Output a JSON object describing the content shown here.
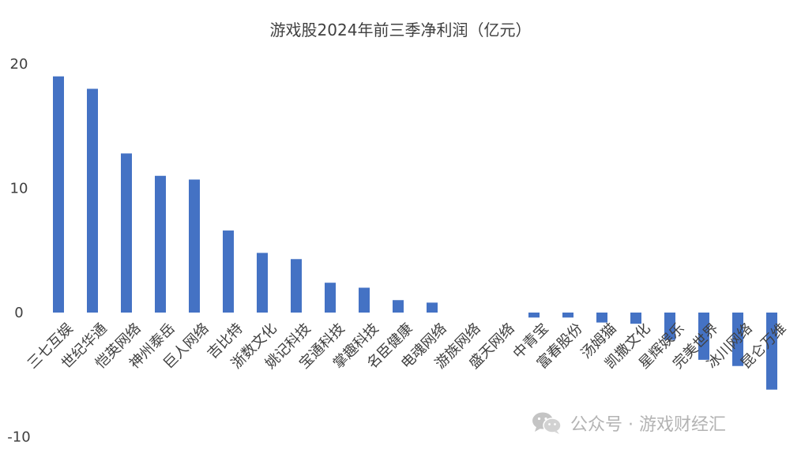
{
  "chart_data": {
    "type": "bar",
    "title": "游戏股2024年前三季净利润（亿元）",
    "categories": [
      "三七互娱",
      "世纪华通",
      "恺英网络",
      "神州泰岳",
      "巨人网络",
      "吉比特",
      "浙数文化",
      "姚记科技",
      "宝通科技",
      "掌趣科技",
      "名臣健康",
      "电魂网络",
      "游族网络",
      "盛天网络",
      "中青宝",
      "富春股份",
      "汤姆猫",
      "凯撒文化",
      "星辉娱乐",
      "完美世界",
      "冰川网络",
      "昆仑万维"
    ],
    "values": [
      19.0,
      18.0,
      12.8,
      11.0,
      10.7,
      6.6,
      4.8,
      4.3,
      2.4,
      2.0,
      1.0,
      0.8,
      0.0,
      0.0,
      -0.4,
      -0.4,
      -0.8,
      -0.9,
      -2.2,
      -3.8,
      -4.3,
      -6.2
    ],
    "ylim": [
      -10,
      20
    ],
    "yticks": [
      "-10",
      "0",
      "10",
      "20"
    ],
    "bar_color": "#4472C4",
    "grid": false,
    "xlabel": "",
    "ylabel": ""
  },
  "watermark": {
    "text": "公众号 · 游戏财经汇",
    "icon": "wechat-icon"
  }
}
